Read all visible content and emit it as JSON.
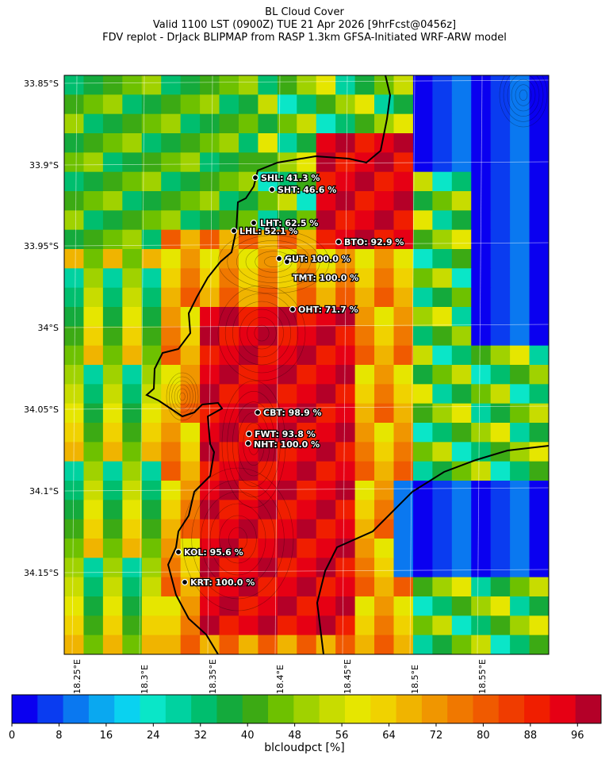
{
  "title": {
    "line1": "BL Cloud Cover",
    "line2": "Valid 1100 LST (0900Z) TUE 21 Apr 2026 [9hrFcst@0456z]",
    "line3": "FDV replot - DrJack BLIPMAP from RASP 1.3km GFSA-Initiated WRF-ARW model"
  },
  "map": {
    "lat_ticks": [
      "33.85°S",
      "33.9°S",
      "33.95°S",
      "34°S",
      "34.05°S",
      "34.1°S",
      "34.15°S"
    ],
    "lon_ticks": [
      "18.25°E",
      "18.3°E",
      "18.35°E",
      "18.4°E",
      "18.45°E",
      "18.5°E",
      "18.55°E"
    ],
    "stations": [
      {
        "name": "SHL: 41.3 %"
      },
      {
        "name": "SHT: 46.6 %"
      },
      {
        "name": "LHT: 62.5 %"
      },
      {
        "name": "LHL: 52.1 %"
      },
      {
        "name": "BTO: 92.9 %"
      },
      {
        "name": "GUT: 100.0 %"
      },
      {
        "name": "TMT: 100.0 %"
      },
      {
        "name": "OHT: 71.7 %"
      },
      {
        "name": "CBT: 98.9 %"
      },
      {
        "name": "FWT: 93.8 %"
      },
      {
        "name": "NHT: 100.0 %"
      },
      {
        "name": "KOL: 95.6 %"
      },
      {
        "name": "KRT: 100.0 %"
      }
    ]
  },
  "colorbar": {
    "label": "blcloudpct [%]",
    "min": 0,
    "max": 100,
    "ticks": [
      "0",
      "8",
      "16",
      "24",
      "32",
      "40",
      "48",
      "56",
      "64",
      "72",
      "80",
      "88",
      "96"
    ],
    "colors": [
      "#0a00f0",
      "#0a3cf0",
      "#0a78f0",
      "#0aa8f0",
      "#0ad2f0",
      "#0ae6c8",
      "#00d2a0",
      "#00be6e",
      "#14aa3c",
      "#3caa14",
      "#6ec100",
      "#a0d200",
      "#c8dc00",
      "#e6e600",
      "#f0d200",
      "#f0b400",
      "#f09600",
      "#f07800",
      "#f05a00",
      "#f03c00",
      "#f01e00",
      "#e60014",
      "#b40028"
    ]
  }
}
